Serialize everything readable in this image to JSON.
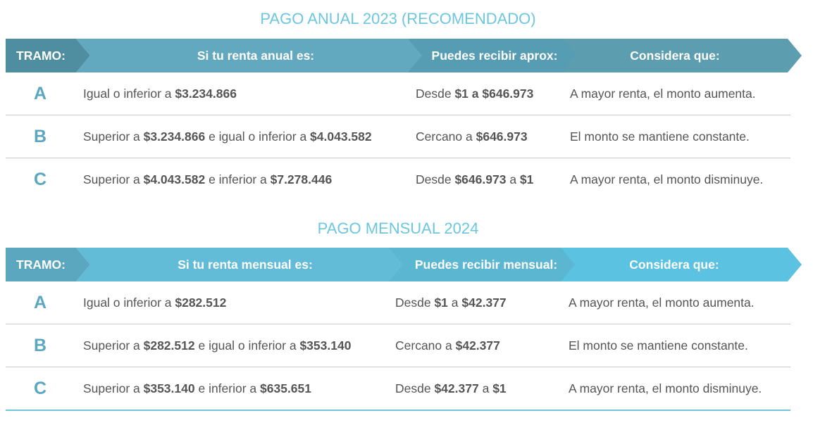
{
  "tables": [
    {
      "title": "PAGO ANUAL 2023 (RECOMENDADO)",
      "headers": [
        "TRAMO:",
        "Si tu renta anual es:",
        "Puedes recibir aprox:",
        "Considera que:"
      ],
      "header_colors": [
        "#4f8ea0",
        "#62a9bf",
        "#569db3",
        "#5c9db0"
      ],
      "rows": [
        {
          "tramo": "A",
          "renta": [
            {
              "t": "Igual o inferior a "
            },
            {
              "t": "$3.234.866",
              "b": true
            }
          ],
          "recibir": [
            {
              "t": "Desde "
            },
            {
              "t": "$1 a $646.973",
              "b": true
            }
          ],
          "considera": "A mayor renta, el monto aumenta."
        },
        {
          "tramo": "B",
          "renta": [
            {
              "t": "Superior a "
            },
            {
              "t": "$3.234.866",
              "b": true
            },
            {
              "t": " e igual o inferior a "
            },
            {
              "t": "$4.043.582",
              "b": true
            }
          ],
          "recibir": [
            {
              "t": "Cercano a "
            },
            {
              "t": "$646.973",
              "b": true
            }
          ],
          "considera": "El monto se mantiene constante."
        },
        {
          "tramo": "C",
          "renta": [
            {
              "t": "Superior a "
            },
            {
              "t": "$4.043.582",
              "b": true
            },
            {
              "t": " e inferior a "
            },
            {
              "t": "$7.278.446",
              "b": true
            }
          ],
          "recibir": [
            {
              "t": "Desde "
            },
            {
              "t": "$646.973",
              "b": true
            },
            {
              "t": " a "
            },
            {
              "t": "$1",
              "b": true
            }
          ],
          "considera": "A mayor renta, el monto disminuye."
        }
      ]
    },
    {
      "title": "PAGO MENSUAL 2024",
      "headers": [
        "TRAMO:",
        "Si tu renta mensual es:",
        "Puedes recibir mensual:",
        "Considera que:"
      ],
      "header_colors": [
        "#5aa7bf",
        "#62bcd8",
        "#5bb6d2",
        "#5cc2e2"
      ],
      "rows": [
        {
          "tramo": "A",
          "renta": [
            {
              "t": "Igual o inferior a "
            },
            {
              "t": "$282.512",
              "b": true
            }
          ],
          "recibir": [
            {
              "t": "Desde "
            },
            {
              "t": "$1",
              "b": true
            },
            {
              "t": " a "
            },
            {
              "t": "$42.377",
              "b": true
            }
          ],
          "considera": "A mayor renta, el monto aumenta."
        },
        {
          "tramo": "B",
          "renta": [
            {
              "t": "Superior a "
            },
            {
              "t": "$282.512",
              "b": true
            },
            {
              "t": " e igual o inferior a "
            },
            {
              "t": "$353.140",
              "b": true
            }
          ],
          "recibir": [
            {
              "t": "Cercano a "
            },
            {
              "t": "$42.377",
              "b": true
            }
          ],
          "considera": "El monto se mantiene constante."
        },
        {
          "tramo": "C",
          "renta": [
            {
              "t": "Superior a "
            },
            {
              "t": "$353.140",
              "b": true
            },
            {
              "t": " e inferior a "
            },
            {
              "t": "$635.651",
              "b": true
            }
          ],
          "recibir": [
            {
              "t": "Desde "
            },
            {
              "t": "$42.377",
              "b": true
            },
            {
              "t": " a "
            },
            {
              "t": "$1",
              "b": true
            }
          ],
          "considera": "A mayor renta, el monto disminuye."
        }
      ]
    }
  ]
}
